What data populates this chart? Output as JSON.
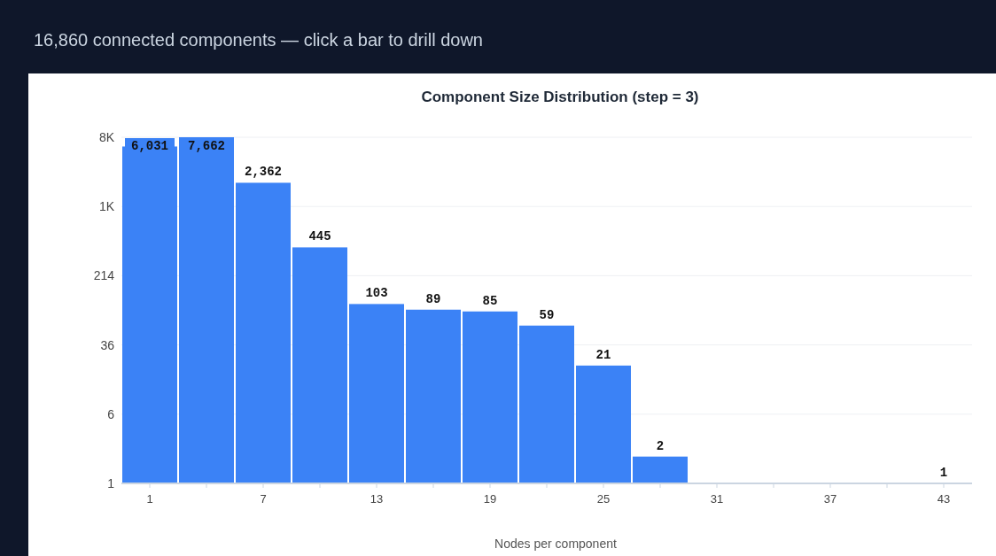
{
  "chart_data": {
    "type": "bar",
    "title": "Component Size Distribution (step = 3)",
    "subtitle": "16,860 connected components — click a bar to drill down",
    "xlabel": "Nodes per component",
    "categories": [
      "1",
      null,
      "7",
      null,
      "13",
      null,
      "19",
      null,
      "25",
      null,
      "31",
      null,
      "37",
      null,
      "43"
    ],
    "values": [
      6031,
      7662,
      2362,
      445,
      103,
      89,
      85,
      59,
      21,
      2,
      null,
      null,
      null,
      null,
      1
    ],
    "color": "#3b82f6",
    "log": true,
    "ylim": [
      1,
      7662
    ],
    "yticks": [
      1,
      {
        "value": 5.98,
        "label": "6"
      },
      {
        "value": 35.8,
        "label": "36"
      },
      214,
      {
        "value": 1281,
        "label": "1K"
      },
      {
        "value": 7662,
        "label": "8K"
      }
    ],
    "grid": "y",
    "value_labels": [
      "6,031",
      "7,662",
      "2,362",
      "445",
      "103",
      "89",
      "85",
      "59",
      "21",
      "2",
      null,
      null,
      null,
      null,
      "1"
    ]
  }
}
